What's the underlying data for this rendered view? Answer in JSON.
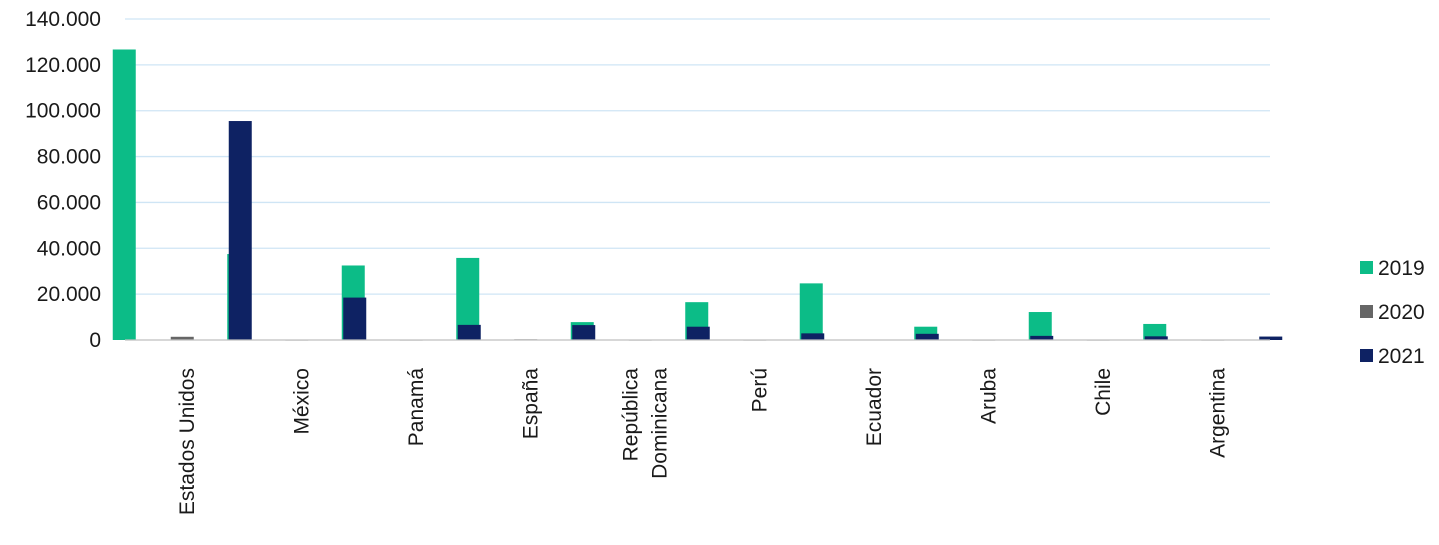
{
  "chart_data": {
    "type": "bar",
    "title": "",
    "xlabel": "",
    "ylabel": "",
    "ylim": [
      0,
      140000
    ],
    "y_ticks": [
      "0",
      "20.000",
      "40.000",
      "60.000",
      "80.000",
      "100.000",
      "120.000",
      "140.000"
    ],
    "grid": true,
    "legend_position": "right",
    "categories": [
      [
        "Estados Unidos"
      ],
      [
        "México"
      ],
      [
        "Panamá"
      ],
      [
        "España"
      ],
      [
        "República",
        "Dominicana"
      ],
      [
        "Perú"
      ],
      [
        "Ecuador"
      ],
      [
        "Aruba"
      ],
      [
        "Chile"
      ],
      [
        "Argentina"
      ]
    ],
    "series": [
      {
        "name": "2019",
        "color": "#0cbc87",
        "values": [
          126700,
          37500,
          32500,
          35800,
          7800,
          16500,
          24700,
          5800,
          12200,
          7000
        ]
      },
      {
        "name": "2020",
        "color": "#666666",
        "values": [
          1400,
          100,
          100,
          300,
          100,
          100,
          200,
          100,
          100,
          100
        ]
      },
      {
        "name": "2021",
        "color": "#0e2263",
        "values": [
          95500,
          18500,
          6600,
          6500,
          5800,
          2900,
          2700,
          1800,
          1600,
          1500
        ]
      }
    ],
    "gridline_color": "#cfe5f5",
    "axis_color": "#bfbfbf"
  }
}
